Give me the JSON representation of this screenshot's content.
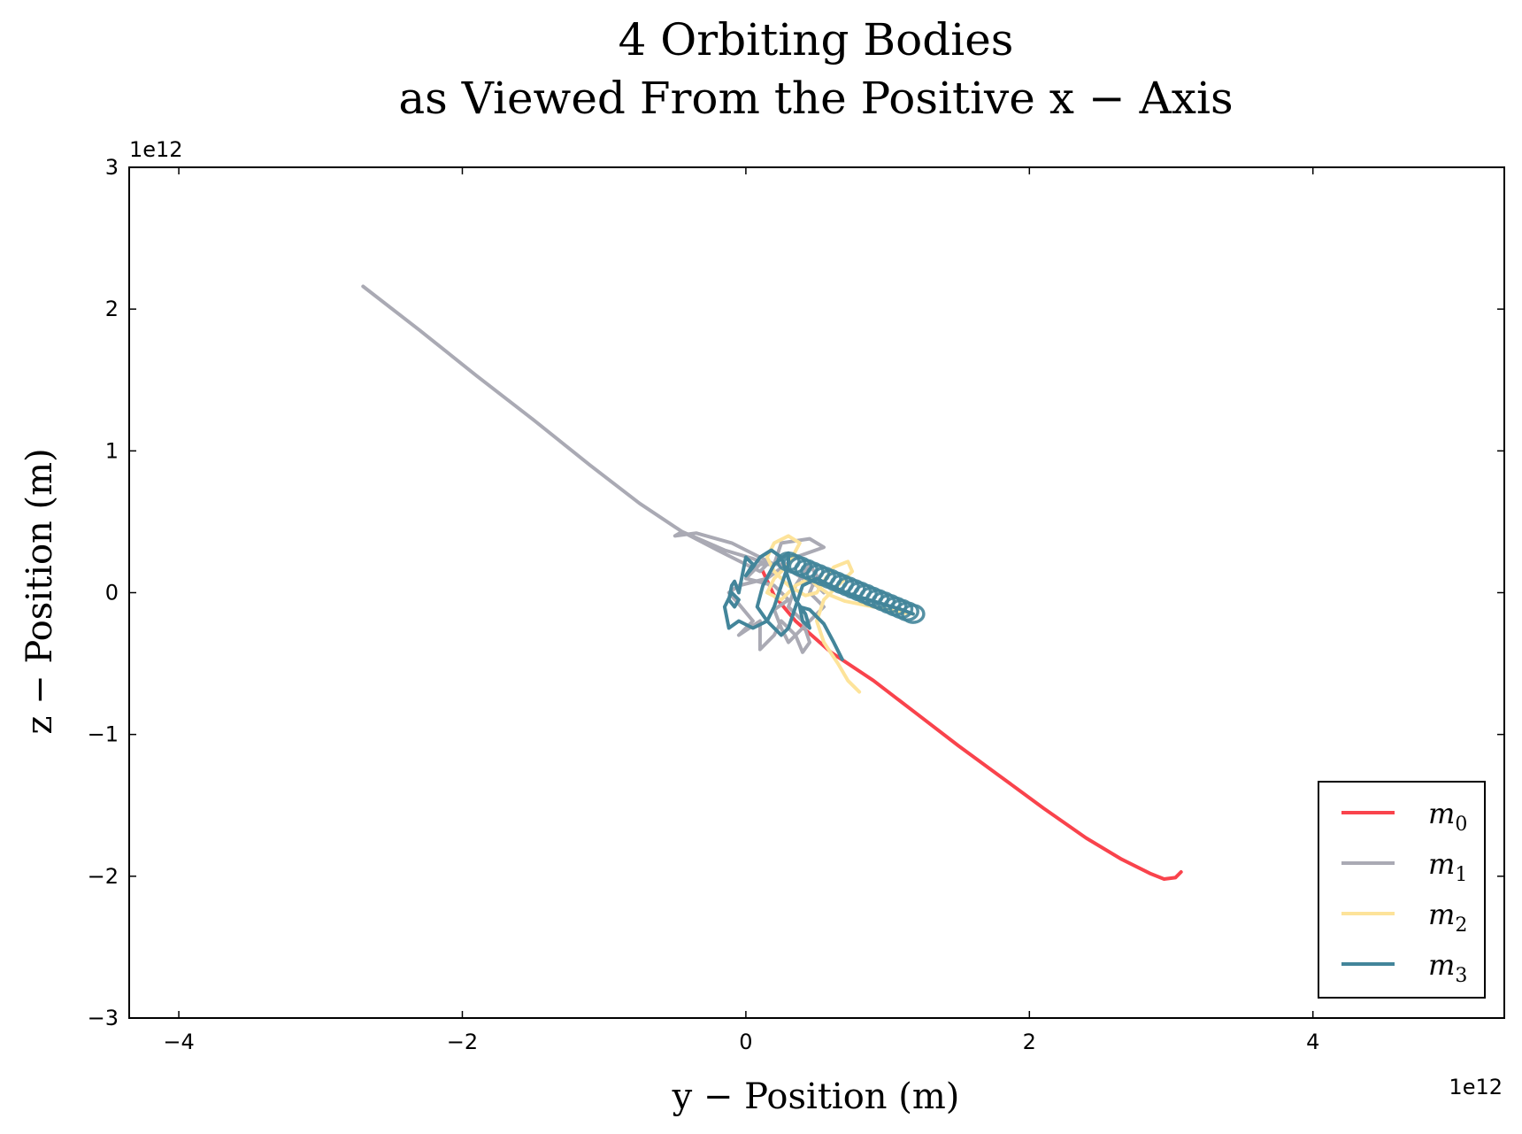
{
  "chart_data": {
    "type": "line",
    "title_line1": "4 Orbiting Bodies",
    "title_line2": "as Viewed From the Positive x − Axis",
    "xlabel": "y − Position (m)",
    "ylabel": "z − Position (m)",
    "x_offset_label": "1e12",
    "y_offset_label": "1e12",
    "x_ticks": [
      -4,
      -2,
      0,
      2,
      4
    ],
    "x_tick_labels": [
      "−4",
      "−2",
      "0",
      "2",
      "4"
    ],
    "y_ticks": [
      -3,
      -2,
      -1,
      0,
      1,
      2,
      3
    ],
    "y_tick_labels": [
      "−3",
      "−2",
      "−1",
      "0",
      "1",
      "2",
      "3"
    ],
    "xlim": [
      -4.35,
      5.35
    ],
    "ylim": [
      -3,
      3
    ],
    "grid": false,
    "legend_position": "lower-right",
    "series": [
      {
        "name": "m",
        "subscript": "0",
        "color": "#f9434c",
        "points": [
          [
            0.12,
            0.15
          ],
          [
            0.2,
            -0.02
          ],
          [
            0.35,
            -0.2
          ],
          [
            0.6,
            -0.42
          ],
          [
            0.9,
            -0.62
          ],
          [
            1.2,
            -0.85
          ],
          [
            1.5,
            -1.08
          ],
          [
            1.8,
            -1.3
          ],
          [
            2.1,
            -1.52
          ],
          [
            2.4,
            -1.73
          ],
          [
            2.65,
            -1.88
          ],
          [
            2.85,
            -1.98
          ],
          [
            2.95,
            -2.02
          ],
          [
            3.03,
            -2.01
          ],
          [
            3.07,
            -1.97
          ]
        ]
      },
      {
        "name": "m",
        "subscript": "1",
        "color": "#aaaab4",
        "points": [
          [
            -2.7,
            2.16
          ],
          [
            -2.3,
            1.85
          ],
          [
            -1.9,
            1.53
          ],
          [
            -1.5,
            1.22
          ],
          [
            -1.1,
            0.9
          ],
          [
            -0.75,
            0.63
          ],
          [
            -0.45,
            0.43
          ],
          [
            -0.15,
            0.3
          ],
          [
            0.05,
            0.24
          ],
          [
            0.15,
            0.2
          ],
          [
            0.1,
            0.15
          ],
          [
            -0.2,
            0.3
          ],
          [
            -0.45,
            0.43
          ],
          [
            -0.5,
            0.4
          ],
          [
            -0.35,
            0.42
          ],
          [
            -0.1,
            0.35
          ],
          [
            0.1,
            0.25
          ],
          [
            0.2,
            0.2
          ],
          [
            0.25,
            0.35
          ],
          [
            0.45,
            0.38
          ],
          [
            0.55,
            0.32
          ],
          [
            0.35,
            0.25
          ],
          [
            0.15,
            0.1
          ],
          [
            -0.05,
            0.05
          ],
          [
            -0.12,
            0.0
          ],
          [
            -0.05,
            -0.08
          ],
          [
            0.05,
            -0.2
          ],
          [
            -0.05,
            -0.3
          ],
          [
            0.1,
            -0.2
          ],
          [
            0.1,
            -0.4
          ],
          [
            0.2,
            -0.3
          ],
          [
            0.25,
            -0.2
          ],
          [
            0.35,
            -0.3
          ],
          [
            0.4,
            -0.42
          ],
          [
            0.45,
            -0.35
          ],
          [
            0.4,
            -0.2
          ],
          [
            0.3,
            -0.1
          ],
          [
            0.35,
            0.05
          ],
          [
            0.45,
            0.2
          ],
          [
            0.5,
            0.12
          ],
          [
            0.45,
            0.0
          ],
          [
            0.55,
            -0.1
          ],
          [
            0.4,
            -0.25
          ],
          [
            0.3,
            -0.35
          ],
          [
            0.25,
            -0.25
          ],
          [
            0.2,
            -0.12
          ],
          [
            0.3,
            -0.05
          ],
          [
            0.2,
            0.05
          ],
          [
            0.0,
            0.1
          ],
          [
            0.1,
            0.2
          ],
          [
            0.25,
            0.2
          ],
          [
            0.4,
            0.1
          ],
          [
            0.5,
            0.05
          ],
          [
            0.55,
            0.0
          ]
        ]
      },
      {
        "name": "m",
        "subscript": "2",
        "color": "#fde39a",
        "points": [
          [
            0.8,
            -0.7
          ],
          [
            0.72,
            -0.62
          ],
          [
            0.65,
            -0.5
          ],
          [
            0.55,
            -0.35
          ],
          [
            0.5,
            -0.2
          ],
          [
            0.55,
            -0.05
          ],
          [
            0.65,
            0.05
          ],
          [
            0.75,
            0.15
          ],
          [
            0.72,
            0.22
          ],
          [
            0.62,
            0.18
          ],
          [
            0.55,
            0.08
          ],
          [
            0.5,
            0.0
          ],
          [
            0.42,
            -0.02
          ],
          [
            0.3,
            0.05
          ],
          [
            0.2,
            0.15
          ],
          [
            0.15,
            0.25
          ],
          [
            0.2,
            0.35
          ],
          [
            0.3,
            0.4
          ],
          [
            0.38,
            0.35
          ],
          [
            0.3,
            0.2
          ],
          [
            0.2,
            0.1
          ],
          [
            0.15,
            0.0
          ],
          [
            0.25,
            -0.05
          ],
          [
            0.35,
            0.05
          ],
          [
            0.45,
            0.1
          ],
          [
            0.5,
            0.05
          ],
          [
            0.6,
            -0.02
          ],
          [
            0.7,
            -0.06
          ],
          [
            0.8,
            -0.08
          ],
          [
            0.9,
            -0.1
          ],
          [
            1.0,
            -0.12
          ],
          [
            1.1,
            -0.14
          ],
          [
            1.18,
            -0.15
          ]
        ]
      },
      {
        "name": "m",
        "subscript": "3",
        "color": "#43859a",
        "points": [
          [
            0.68,
            -0.47
          ],
          [
            0.62,
            -0.35
          ],
          [
            0.55,
            -0.22
          ],
          [
            0.45,
            -0.12
          ],
          [
            0.38,
            -0.1
          ],
          [
            0.4,
            -0.2
          ],
          [
            0.45,
            -0.25
          ],
          [
            0.42,
            -0.15
          ],
          [
            0.35,
            -0.05
          ],
          [
            0.3,
            0.1
          ],
          [
            0.25,
            0.25
          ],
          [
            0.18,
            0.3
          ],
          [
            0.1,
            0.25
          ],
          [
            0.05,
            0.18
          ],
          [
            0.0,
            0.12
          ],
          [
            0.05,
            0.2
          ],
          [
            0.0,
            0.25
          ],
          [
            -0.02,
            0.15
          ],
          [
            -0.05,
            0.0
          ],
          [
            -0.08,
            0.08
          ],
          [
            -0.1,
            0.05
          ],
          [
            -0.12,
            -0.05
          ],
          [
            -0.08,
            -0.1
          ],
          [
            -0.05,
            -0.05
          ],
          [
            -0.1,
            0.0
          ],
          [
            -0.15,
            -0.1
          ],
          [
            -0.12,
            -0.25
          ],
          [
            -0.05,
            -0.2
          ],
          [
            0.05,
            -0.25
          ],
          [
            0.15,
            -0.2
          ],
          [
            0.2,
            -0.1
          ],
          [
            0.25,
            0.05
          ],
          [
            0.3,
            0.2
          ],
          [
            0.3,
            0.28
          ],
          [
            0.2,
            0.2
          ],
          [
            0.12,
            0.05
          ],
          [
            0.08,
            -0.1
          ],
          [
            0.15,
            -0.2
          ],
          [
            0.25,
            -0.3
          ],
          [
            0.3,
            -0.25
          ],
          [
            0.35,
            -0.1
          ],
          [
            0.4,
            0.05
          ],
          [
            0.5,
            0.1
          ],
          [
            0.6,
            0.05
          ],
          [
            0.7,
            0.0
          ],
          [
            0.8,
            -0.03
          ],
          [
            0.9,
            -0.06
          ],
          [
            1.0,
            -0.09
          ],
          [
            1.1,
            -0.12
          ],
          [
            1.18,
            -0.15
          ]
        ]
      }
    ],
    "loops": [
      {
        "series_index": 3,
        "x_start": 0.3,
        "x_end": 1.18,
        "y_start": 0.22,
        "y_end": -0.15,
        "count": 22,
        "rx": 0.075,
        "ry": 0.06
      }
    ]
  }
}
